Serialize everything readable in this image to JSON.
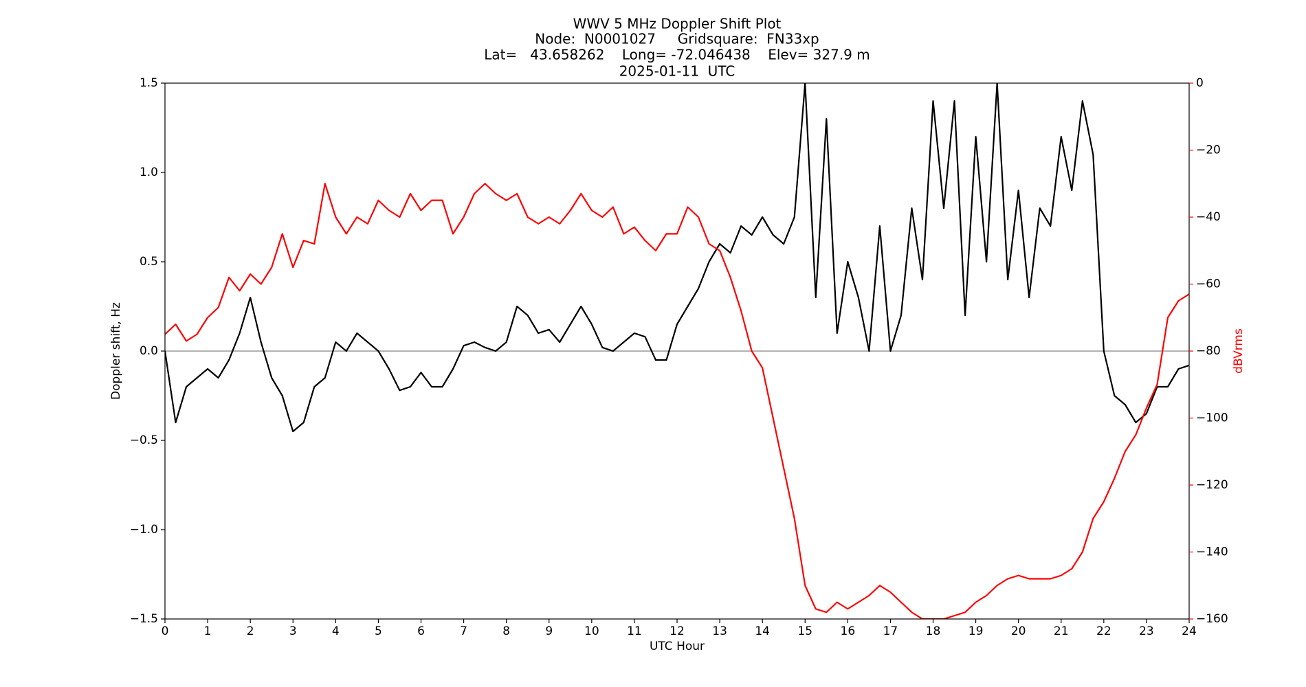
{
  "chart_data": {
    "type": "line",
    "title": "WWV 5 MHz Doppler Shift Plot",
    "subtitle": [
      "Node:  N0001027     Gridsquare:  FN33xp",
      "Lat=   43.658262    Long= -72.046438    Elev= 327.9 m",
      "2025-01-11  UTC"
    ],
    "x_label": "UTC Hour",
    "y_label": "Doppler shift, Hz",
    "y2_label": "dBVrms",
    "x": [
      0,
      0.25,
      0.5,
      0.75,
      1,
      1.25,
      1.5,
      1.75,
      2,
      2.25,
      2.5,
      2.75,
      3,
      3.25,
      3.5,
      3.75,
      4,
      4.25,
      4.5,
      4.75,
      5,
      5.25,
      5.5,
      5.75,
      6,
      6.25,
      6.5,
      6.75,
      7,
      7.25,
      7.5,
      7.75,
      8,
      8.25,
      8.5,
      8.75,
      9,
      9.25,
      9.5,
      9.75,
      10,
      10.25,
      10.5,
      10.75,
      11,
      11.25,
      11.5,
      11.75,
      12,
      12.25,
      12.5,
      12.75,
      13,
      13.25,
      13.5,
      13.75,
      14,
      14.25,
      14.5,
      14.75,
      15,
      15.25,
      15.5,
      15.75,
      16,
      16.25,
      16.5,
      16.75,
      17,
      17.25,
      17.5,
      17.75,
      18,
      18.25,
      18.5,
      18.75,
      19,
      19.25,
      19.5,
      19.75,
      20,
      20.25,
      20.5,
      20.75,
      21,
      21.25,
      21.5,
      21.75,
      22,
      22.25,
      22.5,
      22.75,
      23,
      23.25,
      23.5,
      23.75,
      24
    ],
    "series": [
      {
        "name": "Doppler shift",
        "color": "#000000",
        "axis": "y",
        "values": [
          0,
          -0.4,
          -0.2,
          -0.15,
          -0.1,
          -0.15,
          -0.05,
          0.1,
          0.3,
          0.05,
          -0.15,
          -0.25,
          -0.45,
          -0.4,
          -0.2,
          -0.15,
          0.05,
          0,
          0.1,
          0.05,
          0,
          -0.1,
          -0.22,
          -0.2,
          -0.12,
          -0.2,
          -0.2,
          -0.1,
          0.03,
          0.05,
          0.02,
          0,
          0.05,
          0.25,
          0.2,
          0.1,
          0.12,
          0.05,
          0.15,
          0.25,
          0.15,
          0.02,
          0,
          0.05,
          0.1,
          0.08,
          -0.05,
          -0.05,
          0.15,
          0.25,
          0.35,
          0.5,
          0.6,
          0.55,
          0.7,
          0.65,
          0.75,
          0.65,
          0.6,
          0.75,
          1.5,
          0.3,
          1.3,
          0.1,
          0.5,
          0.3,
          0,
          0.7,
          0,
          0.2,
          0.8,
          0.4,
          1.4,
          0.8,
          1.4,
          0.2,
          1.2,
          0.5,
          1.5,
          0.4,
          0.9,
          0.3,
          0.8,
          0.7,
          1.2,
          0.9,
          1.4,
          1.1,
          0,
          -0.25,
          -0.3,
          -0.4,
          -0.35,
          -0.2,
          -0.2,
          -0.1,
          -0.08
        ]
      },
      {
        "name": "dBVrms",
        "color": "#ff0000",
        "axis": "y2",
        "values": [
          -75,
          -72,
          -77,
          -75,
          -70,
          -67,
          -58,
          -62,
          -57,
          -60,
          -55,
          -45,
          -55,
          -47,
          -48,
          -30,
          -40,
          -45,
          -40,
          -42,
          -35,
          -38,
          -40,
          -33,
          -38,
          -35,
          -35,
          -45,
          -40,
          -33,
          -30,
          -33,
          -35,
          -33,
          -40,
          -42,
          -40,
          -42,
          -38,
          -33,
          -38,
          -40,
          -37,
          -45,
          -43,
          -47,
          -50,
          -45,
          -45,
          -37,
          -40,
          -48,
          -50,
          -58,
          -68,
          -80,
          -85,
          -100,
          -115,
          -130,
          -150,
          -157,
          -158,
          -155,
          -157,
          -155,
          -153,
          -150,
          -152,
          -155,
          -158,
          -160,
          -160,
          -160,
          -159,
          -158,
          -155,
          -153,
          -150,
          -148,
          -147,
          -148,
          -148,
          -148,
          -147,
          -145,
          -140,
          -130,
          -125,
          -118,
          -110,
          -105,
          -97,
          -90,
          -70,
          -65,
          -63
        ]
      }
    ],
    "xlim": [
      0,
      24
    ],
    "xticks": [
      0,
      1,
      2,
      3,
      4,
      5,
      6,
      7,
      8,
      9,
      10,
      11,
      12,
      13,
      14,
      15,
      16,
      17,
      18,
      19,
      20,
      21,
      22,
      23,
      24
    ],
    "ylim": [
      -1.5,
      1.5
    ],
    "yticks": [
      {
        "value": -1.5,
        "label": "−1.5"
      },
      {
        "value": -1,
        "label": "−1.0"
      },
      {
        "value": -0.5,
        "label": "−0.5"
      },
      {
        "value": 0,
        "label": "0.0"
      },
      0.5,
      {
        "value": 1,
        "label": "1.0"
      },
      1.5
    ],
    "y2lim": [
      -160,
      0
    ],
    "y2ticks": [
      {
        "value": -160,
        "label": "−160"
      },
      {
        "value": -140,
        "label": "−140"
      },
      {
        "value": -120,
        "label": "−120"
      },
      {
        "value": -100,
        "label": "−100"
      },
      {
        "value": -80,
        "label": "−80"
      },
      {
        "value": -60,
        "label": "−60"
      },
      {
        "value": -40,
        "label": "−40"
      },
      {
        "value": -20,
        "label": "−20"
      },
      0
    ],
    "hlines": [
      0
    ],
    "hline_color": "#999999",
    "y2_color": "#ff0000"
  }
}
